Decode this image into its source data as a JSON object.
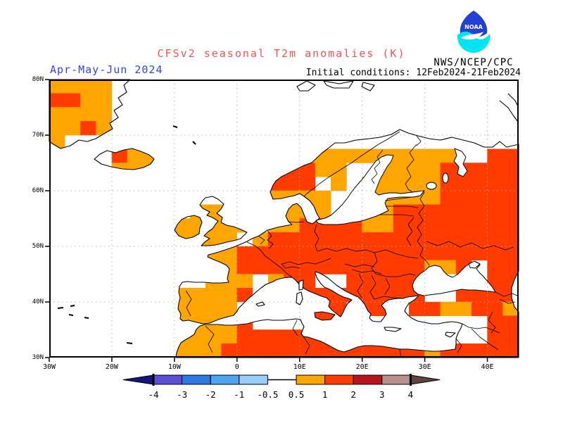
{
  "header": {
    "title": "CFSv2 seasonal T2m anomalies (K)",
    "agency": "NWS/NCEP/CPC",
    "logo_text": "NOAA"
  },
  "subheader": {
    "season": "Apr-May-Jun 2024",
    "initial_conditions": "Initial conditions: 12Feb2024-21Feb2024"
  },
  "colors": {
    "title": "#fa4f4f",
    "season": "#3246e6",
    "text": "#000000",
    "gridline": "#b2b2b2",
    "coastline": "#000000",
    "logo_blue": "#2340d4",
    "logo_cyan": "#00e6f0"
  },
  "chart_data": {
    "type": "heatmap",
    "title": "CFSv2 seasonal T2m anomalies (K)",
    "season": "Apr-May-Jun 2024",
    "initial_conditions": "12Feb2024-21Feb2024",
    "units": "K",
    "region": "Europe / North Atlantic",
    "lon_range": [
      -30,
      45
    ],
    "lat_range": [
      30,
      80
    ],
    "cell_size_deg": 2.5,
    "lon_ticks": {
      "values": [
        -30,
        -20,
        -10,
        0,
        10,
        20,
        30,
        40
      ],
      "labels": [
        "30W",
        "20W",
        "10W",
        "0",
        "10E",
        "20E",
        "30E",
        "40E"
      ]
    },
    "lat_ticks": {
      "values": [
        80,
        70,
        60,
        50,
        40,
        30
      ],
      "labels": [
        "80N",
        "70N",
        "60N",
        "50N",
        "40N",
        "30N"
      ]
    },
    "grid_on": true,
    "anomaly_classes": {
      ".": {
        "range": "below 0.5 K (not shaded)",
        "color": "#ffffff"
      },
      "o": {
        "range": "0.5 to 1 K",
        "color": "#ffa500"
      },
      "r": {
        "range": "1 to 2 K",
        "color": "#ff3b00"
      }
    },
    "grid_rows": [
      "oooo..........................",
      "rroo..........................",
      "oooo..........................",
      "ooro..........................",
      "o.............................",
      "....roo........ooooooooooo..rr",
      "....ooo.......rrroo..oooorrrrr",
      ".............orrr.o.ooooorrrrr",
      "..............oooo..ooooorrrrr",
      ".........ooo..oooo.roorrrrrrrr",
      "........ooooo.oorrrroorrrrrrrr",
      "........oooo.orrrrrrrrrrrrrrrr",
      ".........ooorrrrrrrrrrrrrrrrrr",
      "..........oorrrrrrrrrrrroor.rr",
      "..........ooo.orr..rrrrr....rr",
      "........oooor...rrrrrrrr..rrrr",
      "........oooo.....rr.rr.rroorro",
      "........oooor....rrr........rr",
      "........oooorrrrrrrrr.......rr",
      "........ooorrrrrrrrrrrrrorrrrr"
    ],
    "colorbar": {
      "tick_labels": [
        "-4",
        "-3",
        "-2",
        "-1",
        "-0.5",
        "0.5",
        "1",
        "2",
        "3",
        "4"
      ],
      "segment_colors": [
        "#5a4fd8",
        "#2d7ae5",
        "#4aa5f5",
        "#99cdfa",
        "#ffffff",
        "#ffa500",
        "#ff3b00",
        "#b5161b",
        "#bc8f8f"
      ],
      "arrow_left_color": "#15157e",
      "arrow_right_color": "#5f463c"
    }
  }
}
